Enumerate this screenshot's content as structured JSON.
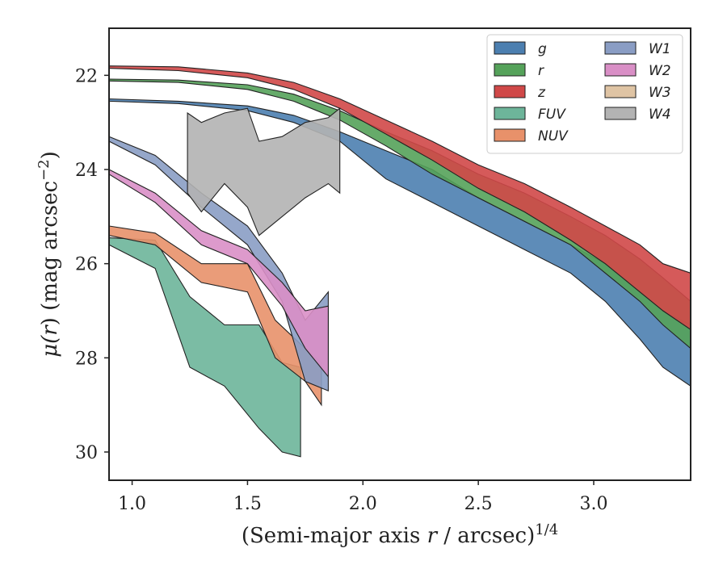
{
  "chart_data": {
    "type": "area",
    "title": "",
    "xlabel_parts": {
      "pre": "(Semi-major axis ",
      "var": "r",
      "post": " / arcsec)",
      "sup": "1/4"
    },
    "ylabel_parts": {
      "mu": "μ(",
      "var": "r",
      "post": ") (mag arcsec",
      "sup": "−2",
      "close": ")"
    },
    "xlim": [
      0.9,
      3.42
    ],
    "ylim": [
      30.6,
      21.0
    ],
    "y_inverted": true,
    "grid": false,
    "legend_position": "top-right",
    "legend_columns": 2,
    "xticks": [
      1.0,
      1.5,
      2.0,
      2.5,
      3.0
    ],
    "xtick_labels": [
      "1.0",
      "1.5",
      "2.0",
      "2.5",
      "3.0"
    ],
    "yticks": [
      22,
      24,
      26,
      28,
      30
    ],
    "ytick_labels": [
      "22",
      "24",
      "26",
      "28",
      "30"
    ],
    "series": [
      {
        "name": "g",
        "color": "#4c7fb0",
        "x": [
          0.9,
          1.2,
          1.5,
          1.7,
          1.9,
          2.1,
          2.3,
          2.5,
          2.7,
          2.9,
          3.05,
          3.2,
          3.3,
          3.42
        ],
        "y_upper": [
          22.5,
          22.55,
          22.65,
          22.85,
          23.2,
          23.6,
          24.0,
          24.6,
          25.1,
          25.6,
          26.0,
          26.6,
          27.0,
          27.3
        ],
        "y_lower": [
          22.55,
          22.6,
          22.75,
          23.0,
          23.4,
          24.2,
          24.7,
          25.2,
          25.7,
          26.2,
          26.8,
          27.6,
          28.2,
          28.6
        ]
      },
      {
        "name": "r",
        "color": "#55a25a",
        "x": [
          0.9,
          1.2,
          1.5,
          1.7,
          1.9,
          2.1,
          2.3,
          2.5,
          2.7,
          2.9,
          3.05,
          3.2,
          3.3,
          3.42
        ],
        "y_upper": [
          22.08,
          22.1,
          22.2,
          22.4,
          22.75,
          23.2,
          23.6,
          24.1,
          24.5,
          25.0,
          25.4,
          25.9,
          26.3,
          26.8
        ],
        "y_lower": [
          22.12,
          22.15,
          22.3,
          22.55,
          22.95,
          23.5,
          24.1,
          24.6,
          25.1,
          25.6,
          26.2,
          26.8,
          27.3,
          27.8
        ]
      },
      {
        "name": "z",
        "color": "#d04848",
        "x": [
          0.9,
          1.2,
          1.5,
          1.7,
          1.9,
          2.1,
          2.3,
          2.5,
          2.7,
          2.9,
          3.05,
          3.2,
          3.3,
          3.42
        ],
        "y_upper": [
          21.8,
          21.82,
          21.95,
          22.15,
          22.5,
          22.95,
          23.4,
          23.9,
          24.3,
          24.8,
          25.2,
          25.6,
          26.0,
          26.2
        ],
        "y_lower": [
          21.85,
          21.9,
          22.05,
          22.3,
          22.7,
          23.25,
          23.8,
          24.4,
          24.9,
          25.5,
          26.0,
          26.6,
          27.0,
          27.4
        ]
      },
      {
        "name": "FUV",
        "color": "#6db59a",
        "x": [
          0.9,
          1.1,
          1.25,
          1.4,
          1.55,
          1.65,
          1.73
        ],
        "y_upper": [
          25.45,
          25.5,
          26.7,
          27.3,
          27.3,
          28.1,
          28.2
        ],
        "y_lower": [
          25.6,
          26.1,
          28.2,
          28.6,
          29.5,
          30.0,
          30.1
        ]
      },
      {
        "name": "NUV",
        "color": "#e8916a",
        "x": [
          0.9,
          1.1,
          1.3,
          1.5,
          1.62,
          1.75,
          1.82
        ],
        "y_upper": [
          25.2,
          25.35,
          26.0,
          26.0,
          27.2,
          27.8,
          28.1
        ],
        "y_lower": [
          25.4,
          25.6,
          26.4,
          26.6,
          28.0,
          28.5,
          29.0
        ]
      },
      {
        "name": "W1",
        "color": "#8a9dc4",
        "x": [
          0.9,
          1.1,
          1.3,
          1.5,
          1.65,
          1.75,
          1.85
        ],
        "y_upper": [
          23.3,
          23.7,
          24.5,
          25.2,
          26.2,
          27.2,
          26.6
        ],
        "y_lower": [
          23.4,
          23.9,
          24.8,
          25.6,
          26.8,
          28.5,
          28.7
        ]
      },
      {
        "name": "W2",
        "color": "#d98fc6",
        "x": [
          0.9,
          1.1,
          1.3,
          1.5,
          1.65,
          1.75,
          1.85
        ],
        "y_upper": [
          24.0,
          24.5,
          25.3,
          25.7,
          26.4,
          27.0,
          26.9
        ],
        "y_lower": [
          24.1,
          24.7,
          25.6,
          26.0,
          26.9,
          27.8,
          28.4
        ]
      },
      {
        "name": "W3",
        "color": "#dfc4a4",
        "x": [],
        "y_upper": [],
        "y_lower": []
      },
      {
        "name": "W4",
        "color": "#b3b3b3",
        "x": [
          1.24,
          1.3,
          1.4,
          1.5,
          1.55,
          1.65,
          1.75,
          1.85,
          1.9
        ],
        "y_upper": [
          22.8,
          23.0,
          22.8,
          22.7,
          23.4,
          23.3,
          23.0,
          22.9,
          22.7
        ],
        "y_lower": [
          24.5,
          24.9,
          24.3,
          24.8,
          25.4,
          25.0,
          24.6,
          24.3,
          24.5
        ]
      }
    ]
  }
}
